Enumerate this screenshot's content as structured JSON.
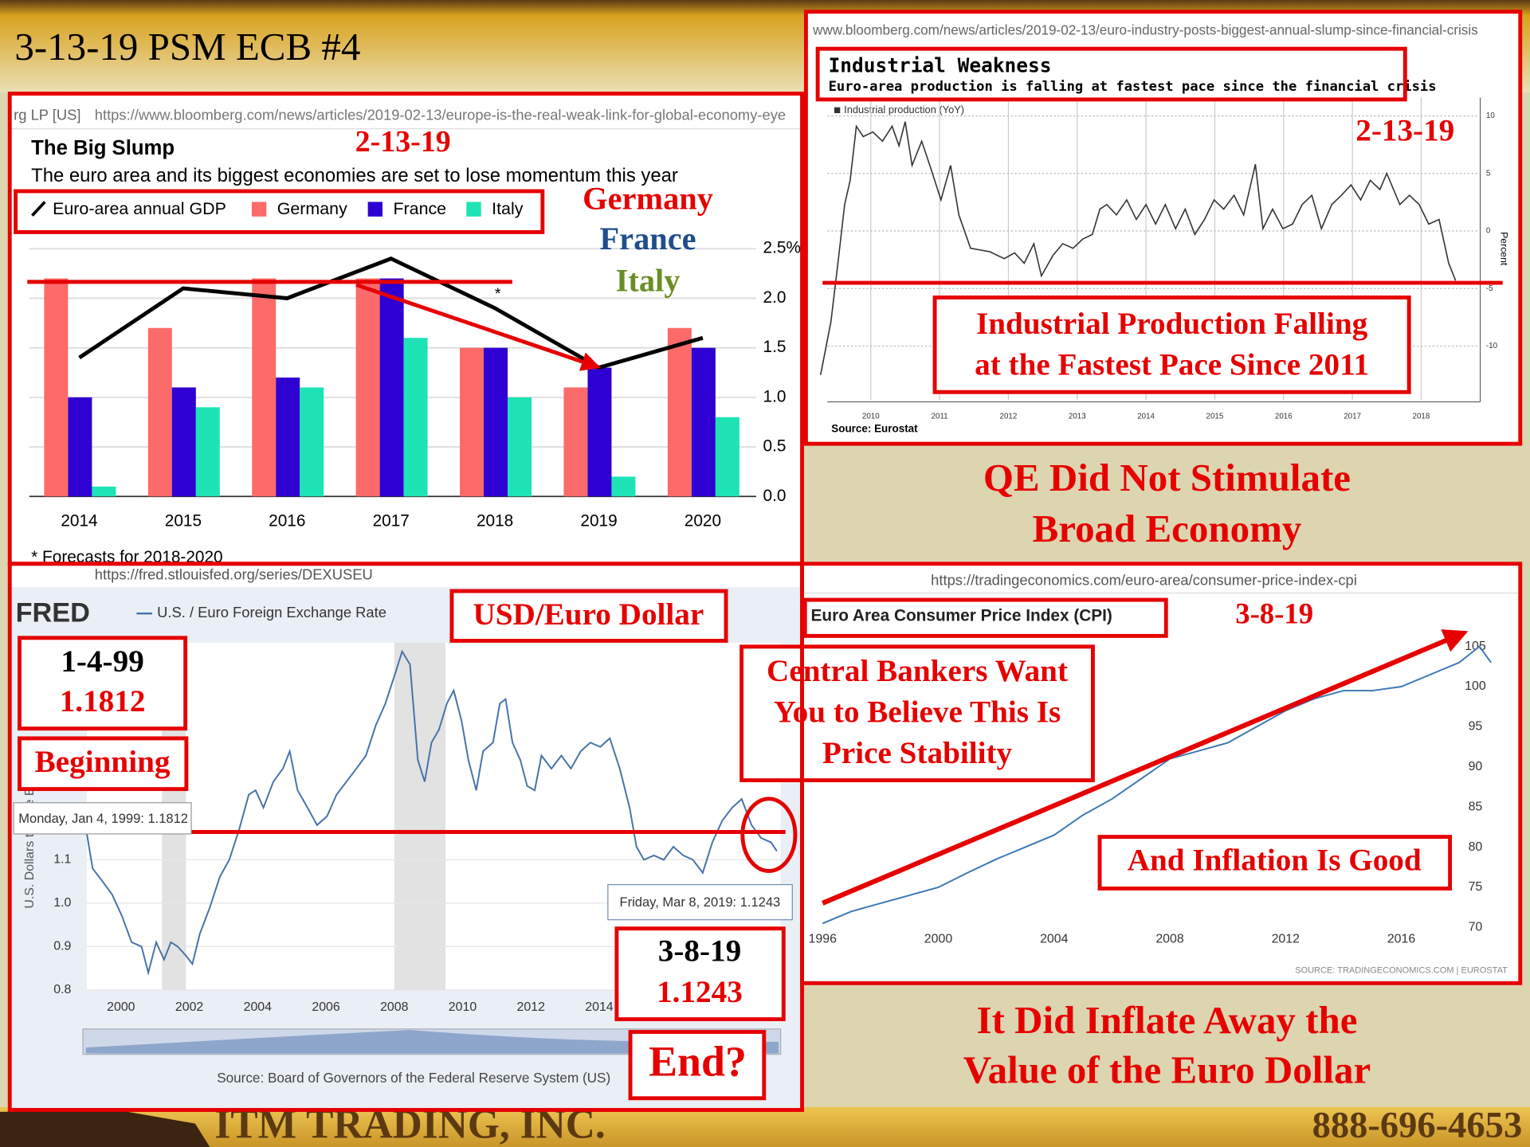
{
  "slide": {
    "title": "3-13-19 PSM ECB #4",
    "captions": [
      {
        "lines": [
          "QE Did Not Stimulate",
          "Broad Economy"
        ]
      },
      {
        "lines": [
          "It Did Inflate Away the",
          "Value of the Euro Dollar"
        ]
      }
    ],
    "footer": {
      "company": "ITM TRADING, INC.",
      "phone": "888-696-4653"
    }
  },
  "chart_data": [
    {
      "type": "bar",
      "site": "rg LP [US]",
      "url": "https://www.bloomberg.com/news/articles/2019-02-13/europe-is-the-real-weak-link-for-global-economy-eye",
      "title": "The Big Slump",
      "subtitle": "The euro area and its biggest economies are set to lose momentum this year",
      "forecast_marker": "*",
      "footnote": "* Forecasts for 2018-2020",
      "categories": [
        "2014",
        "2015",
        "2016",
        "2017",
        "2018",
        "2019",
        "2020"
      ],
      "series": [
        {
          "name": "Euro-area annual GDP",
          "type": "line",
          "color": "#000000",
          "values": [
            1.4,
            2.1,
            2.0,
            2.4,
            1.9,
            1.3,
            1.6
          ]
        },
        {
          "name": "Germany",
          "color": "#fd6a6a",
          "values": [
            2.2,
            1.7,
            2.2,
            2.2,
            1.5,
            1.1,
            1.7
          ]
        },
        {
          "name": "France",
          "color": "#2e00d2",
          "values": [
            1.0,
            1.1,
            1.2,
            2.2,
            1.5,
            1.3,
            1.5
          ]
        },
        {
          "name": "Italy",
          "color": "#1de3b5",
          "values": [
            0.1,
            0.9,
            1.1,
            1.6,
            1.0,
            0.2,
            0.8
          ]
        }
      ],
      "ylim": [
        0,
        2.5
      ],
      "yticks": [
        {
          "value": 0,
          "label": "0.0"
        },
        0.5,
        {
          "value": 1,
          "label": "1.0"
        },
        1.5,
        {
          "value": 2,
          "label": "2.0"
        },
        {
          "value": 2.5,
          "label": "2.5%"
        }
      ],
      "grid": true,
      "annotations": [
        "2-13-19",
        "Germany",
        "France",
        "Italy"
      ]
    },
    {
      "type": "line",
      "url": "www.bloomberg.com/news/articles/2019-02-13/euro-industry-posts-biggest-annual-slump-since-financial-crisis",
      "title": "Industrial Weakness",
      "subtitle": "Euro-area production is falling at fastest pace since the financial crisis",
      "source": "Source: Eurostat",
      "ylabel": "Percent",
      "series": [
        {
          "name": "Industrial production (YoY)",
          "color": "#333333",
          "x": [
            2009.27,
            2009.42,
            2009.53,
            2009.62,
            2009.7,
            2009.79,
            2009.89,
            2010.03,
            2010.17,
            2010.31,
            2010.41,
            2010.5,
            2010.6,
            2010.74,
            2010.88,
            2011.02,
            2011.16,
            2011.28,
            2011.45,
            2011.73,
            2011.94,
            2012.09,
            2012.23,
            2012.37,
            2012.48,
            2012.65,
            2012.79,
            2012.94,
            2013.08,
            2013.22,
            2013.33,
            2013.43,
            2013.57,
            2013.72,
            2013.86,
            2014,
            2014.14,
            2014.28,
            2014.43,
            2014.57,
            2014.71,
            2014.85,
            2014.99,
            2015.13,
            2015.28,
            2015.42,
            2015.59,
            2015.7,
            2015.84,
            2015.99,
            2016.13,
            2016.27,
            2016.41,
            2016.55,
            2016.7,
            2016.84,
            2016.98,
            2017.12,
            2017.26,
            2017.4,
            2017.5,
            2017.69,
            2017.83,
            2017.97,
            2018.11,
            2018.26,
            2018.4,
            2018.5
          ],
          "values": [
            -12.5,
            -7.9,
            -2.4,
            2.3,
            4.4,
            9.1,
            8.2,
            8.6,
            7.8,
            9.1,
            7.4,
            9.5,
            5.7,
            7.8,
            5.3,
            2.7,
            5.7,
            1.4,
            -1.5,
            -1.8,
            -2.4,
            -1.9,
            -2.8,
            -1.1,
            -3.9,
            -2.1,
            -1.1,
            -1.5,
            -0.7,
            -0.3,
            1.9,
            2.3,
            1.4,
            2.7,
            1,
            2.3,
            0.6,
            2.3,
            0.2,
            1.9,
            -0.3,
            1,
            2.7,
            1.9,
            3.1,
            1.4,
            5.8,
            0.2,
            1.9,
            0.2,
            0.6,
            2.3,
            3.1,
            0.2,
            2.3,
            3.1,
            4,
            2.7,
            4.4,
            3.6,
            5,
            2.3,
            3.1,
            2.3,
            0.6,
            1,
            -2.8,
            -4.3
          ]
        }
      ],
      "xlim": [
        2009.37,
        2018.83
      ],
      "ylim": [
        -14.5,
        11
      ],
      "xticks": [
        2010,
        2011,
        2012,
        2013,
        2014,
        2015,
        2016,
        2017,
        2018
      ],
      "yticks": [
        -10,
        -5,
        0,
        5,
        10
      ],
      "grid": true,
      "annotations": [
        "2-13-19",
        {
          "lines": [
            "Industrial Production Falling",
            "at the Fastest Pace Since 2011"
          ]
        }
      ]
    },
    {
      "type": "line",
      "url": "https://fred.stlouisfed.org/series/DEXUSEU",
      "brand": "FRED",
      "ylabel": "U.S. Dollars to One Euro",
      "source": "Source: Board of Governors of the Federal Reserve System (US)",
      "series": [
        {
          "name": "U.S. / Euro Foreign Exchange Rate",
          "color": "#4572a7",
          "x": [
            1999,
            1999.17,
            1999.46,
            1999.74,
            2000.03,
            2000.31,
            2000.6,
            2000.8,
            2001.03,
            2001.26,
            2001.46,
            2001.66,
            2001.89,
            2002.09,
            2002.31,
            2002.6,
            2002.89,
            2003.17,
            2003.46,
            2003.74,
            2003.94,
            2004.17,
            2004.46,
            2004.74,
            2004.94,
            2005.17,
            2005.46,
            2005.74,
            2006.03,
            2006.31,
            2006.6,
            2006.89,
            2007.17,
            2007.46,
            2007.74,
            2008.03,
            2008.23,
            2008.46,
            2008.69,
            2008.89,
            2009.09,
            2009.31,
            2009.54,
            2009.74,
            2009.97,
            2010.17,
            2010.4,
            2010.6,
            2010.89,
            2011.09,
            2011.26,
            2011.46,
            2011.69,
            2011.89,
            2012.11,
            2012.31,
            2012.6,
            2012.89,
            2013.17,
            2013.46,
            2013.74,
            2014.03,
            2014.31,
            2014.6,
            2014.89,
            2015.09,
            2015.31,
            2015.6,
            2015.89,
            2016.17,
            2016.46,
            2016.74,
            2017.03,
            2017.31,
            2017.6,
            2017.89,
            2018.17,
            2018.46,
            2018.74,
            2019.03,
            2019.2
          ],
          "values": [
            1.16,
            1.08,
            1.05,
            1.02,
            0.97,
            0.91,
            0.9,
            0.84,
            0.91,
            0.87,
            0.91,
            0.9,
            0.88,
            0.86,
            0.93,
            0.99,
            1.06,
            1.1,
            1.17,
            1.25,
            1.26,
            1.22,
            1.28,
            1.31,
            1.35,
            1.26,
            1.22,
            1.18,
            1.2,
            1.25,
            1.28,
            1.31,
            1.34,
            1.41,
            1.46,
            1.53,
            1.58,
            1.55,
            1.33,
            1.28,
            1.37,
            1.4,
            1.46,
            1.49,
            1.42,
            1.33,
            1.26,
            1.35,
            1.37,
            1.46,
            1.47,
            1.37,
            1.33,
            1.27,
            1.26,
            1.34,
            1.31,
            1.34,
            1.31,
            1.35,
            1.37,
            1.36,
            1.38,
            1.31,
            1.22,
            1.13,
            1.1,
            1.11,
            1.1,
            1.13,
            1.11,
            1.1,
            1.07,
            1.14,
            1.19,
            1.22,
            1.24,
            1.18,
            1.15,
            1.14,
            1.12
          ]
        }
      ],
      "recessions": [
        [
          2001.2,
          2001.9
        ],
        [
          2008.0,
          2009.5
        ]
      ],
      "xlim": [
        1999,
        2019.31
      ],
      "ylim": [
        0.8,
        1.6
      ],
      "xticks": [
        2000,
        2002,
        2004,
        2006,
        2008,
        2010,
        2012,
        2014
      ],
      "yticks": [
        0.8,
        0.9,
        {
          "value": 1,
          "label": "1.0"
        },
        1.1
      ],
      "grid": true,
      "tooltips": [
        "Monday, Jan 4, 1999: 1.1812",
        "Friday, Mar 8, 2019: 1.1243"
      ],
      "annotations": [
        "USD/Euro Dollar",
        {
          "lines": [
            "1-4-99",
            "1.1812"
          ]
        },
        "Beginning",
        {
          "lines": [
            "3-8-19",
            "1.1243"
          ]
        },
        "End?"
      ]
    },
    {
      "type": "line",
      "url": "https://tradingeconomics.com/euro-area/consumer-price-index-cpi",
      "title": "Euro Area Consumer Price Index (CPI)",
      "source": "SOURCE: TRADINGECONOMICS.COM | EUROSTAT",
      "series": [
        {
          "color": "#3a78b5",
          "x": [
            1996,
            1997,
            1998,
            1999,
            2000,
            2001,
            2002,
            2003,
            2004,
            2005,
            2006,
            2007,
            2008,
            2009,
            2010,
            2011,
            2012,
            2013,
            2014,
            2015,
            2016,
            2017,
            2018,
            2018.7,
            2019.1
          ],
          "values": [
            70.5,
            72,
            73,
            74,
            75,
            76.8,
            78.5,
            80,
            81.5,
            84,
            86,
            88.5,
            91,
            92,
            93,
            95,
            97,
            98.5,
            99.5,
            99.5,
            100,
            101.5,
            103,
            105,
            103
          ]
        }
      ],
      "xlim": [
        1996,
        2019.3
      ],
      "ylim": [
        69.5,
        106
      ],
      "xticks": [
        1996,
        2000,
        2004,
        2008,
        2012,
        2016
      ],
      "yticks": [
        70,
        75,
        80,
        85,
        90,
        95,
        100,
        105
      ],
      "grid": false,
      "annotations": [
        "3-8-19",
        {
          "lines": [
            "Central Bankers Want",
            "You to Believe This Is",
            "Price Stability"
          ]
        },
        "And Inflation Is Good"
      ]
    }
  ]
}
